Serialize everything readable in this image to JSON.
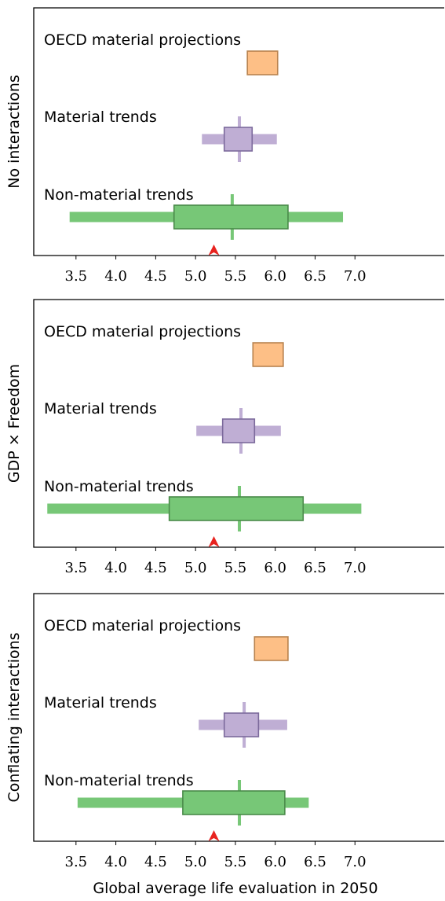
{
  "chart_data": [
    {
      "type": "range-box",
      "ylabel": "No interactions",
      "xlim": [
        2.97,
        8.12
      ],
      "xticks": [
        3.5,
        {
          "value": 4,
          "label": "4.0"
        },
        4.5,
        {
          "value": 5,
          "label": "5.0"
        },
        5.5,
        {
          "value": 6,
          "label": "6.0"
        },
        6.5,
        {
          "value": 7,
          "label": "7.0"
        }
      ],
      "reference_marker": 5.23,
      "marker_color": "#e8231f",
      "series": [
        {
          "name": "OECD material projections",
          "color": "#fdbf86",
          "edgecolor": "#b8834f",
          "box": [
            5.65,
            6.03
          ]
        },
        {
          "name": "Material trends",
          "color": "#bfaed4",
          "edgecolor": "#7c6a9c",
          "box": [
            5.36,
            5.71
          ],
          "whisker": [
            5.08,
            6.02
          ],
          "median": 5.55
        },
        {
          "name": "Non-material trends",
          "color": "#77c777",
          "edgecolor": "#4a8a4a",
          "box": [
            4.73,
            6.16
          ],
          "whisker": [
            3.42,
            6.85
          ],
          "median": 5.46
        }
      ]
    },
    {
      "type": "range-box",
      "ylabel": "GDP × Freedom",
      "xlim": [
        2.97,
        8.12
      ],
      "xticks": [
        3.5,
        {
          "value": 4,
          "label": "4.0"
        },
        4.5,
        {
          "value": 5,
          "label": "5.0"
        },
        5.5,
        {
          "value": 6,
          "label": "6.0"
        },
        6.5,
        {
          "value": 7,
          "label": "7.0"
        }
      ],
      "reference_marker": 5.23,
      "marker_color": "#e8231f",
      "series": [
        {
          "name": "OECD material projections",
          "color": "#fdbf86",
          "edgecolor": "#b8834f",
          "box": [
            5.72,
            6.1
          ]
        },
        {
          "name": "Material trends",
          "color": "#bfaed4",
          "edgecolor": "#7c6a9c",
          "box": [
            5.34,
            5.74
          ],
          "whisker": [
            5.01,
            6.07
          ],
          "median": 5.57
        },
        {
          "name": "Non-material trends",
          "color": "#77c777",
          "edgecolor": "#4a8a4a",
          "box": [
            4.67,
            6.35
          ],
          "whisker": [
            3.14,
            7.08
          ],
          "median": 5.55
        }
      ]
    },
    {
      "type": "range-box",
      "ylabel": "Conflating interactions",
      "xlabel": "Global average life evaluation in 2050",
      "xlim": [
        2.97,
        8.12
      ],
      "xticks": [
        3.5,
        {
          "value": 4,
          "label": "4.0"
        },
        4.5,
        {
          "value": 5,
          "label": "5.0"
        },
        5.5,
        {
          "value": 6,
          "label": "6.0"
        },
        6.5,
        {
          "value": 7,
          "label": "7.0"
        }
      ],
      "reference_marker": 5.23,
      "marker_color": "#e8231f",
      "series": [
        {
          "name": "OECD material projections",
          "color": "#fdbf86",
          "edgecolor": "#b8834f",
          "box": [
            5.74,
            6.16
          ]
        },
        {
          "name": "Material trends",
          "color": "#bfaed4",
          "edgecolor": "#7c6a9c",
          "box": [
            5.36,
            5.79
          ],
          "whisker": [
            5.04,
            6.15
          ],
          "median": 5.61
        },
        {
          "name": "Non-material trends",
          "color": "#77c777",
          "edgecolor": "#4a8a4a",
          "box": [
            4.84,
            6.12
          ],
          "whisker": [
            3.52,
            6.42
          ],
          "median": 5.55
        }
      ]
    }
  ]
}
